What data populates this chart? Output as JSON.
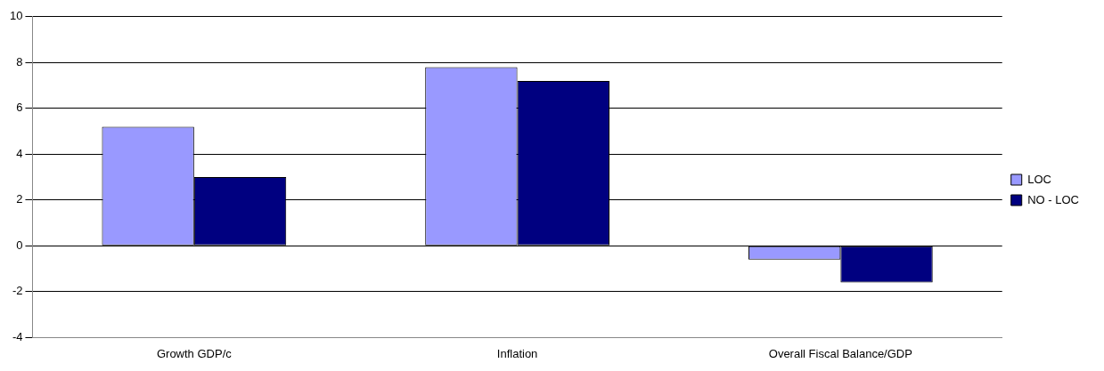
{
  "chart_data": {
    "type": "bar",
    "categories": [
      "Growth GDP/c",
      "Inflation",
      "Overall Fiscal Balance/GDP"
    ],
    "series": [
      {
        "name": "LOC",
        "color": "#9999ff",
        "values": [
          5.2,
          7.8,
          -0.6
        ]
      },
      {
        "name": "NO - LOC",
        "color": "#000080",
        "values": [
          3.0,
          7.2,
          -1.6
        ]
      }
    ],
    "ylim": [
      -4,
      10
    ],
    "yticks": [
      -4,
      -2,
      0,
      2,
      4,
      6,
      8,
      10
    ],
    "grid": "y",
    "legend": "right"
  }
}
